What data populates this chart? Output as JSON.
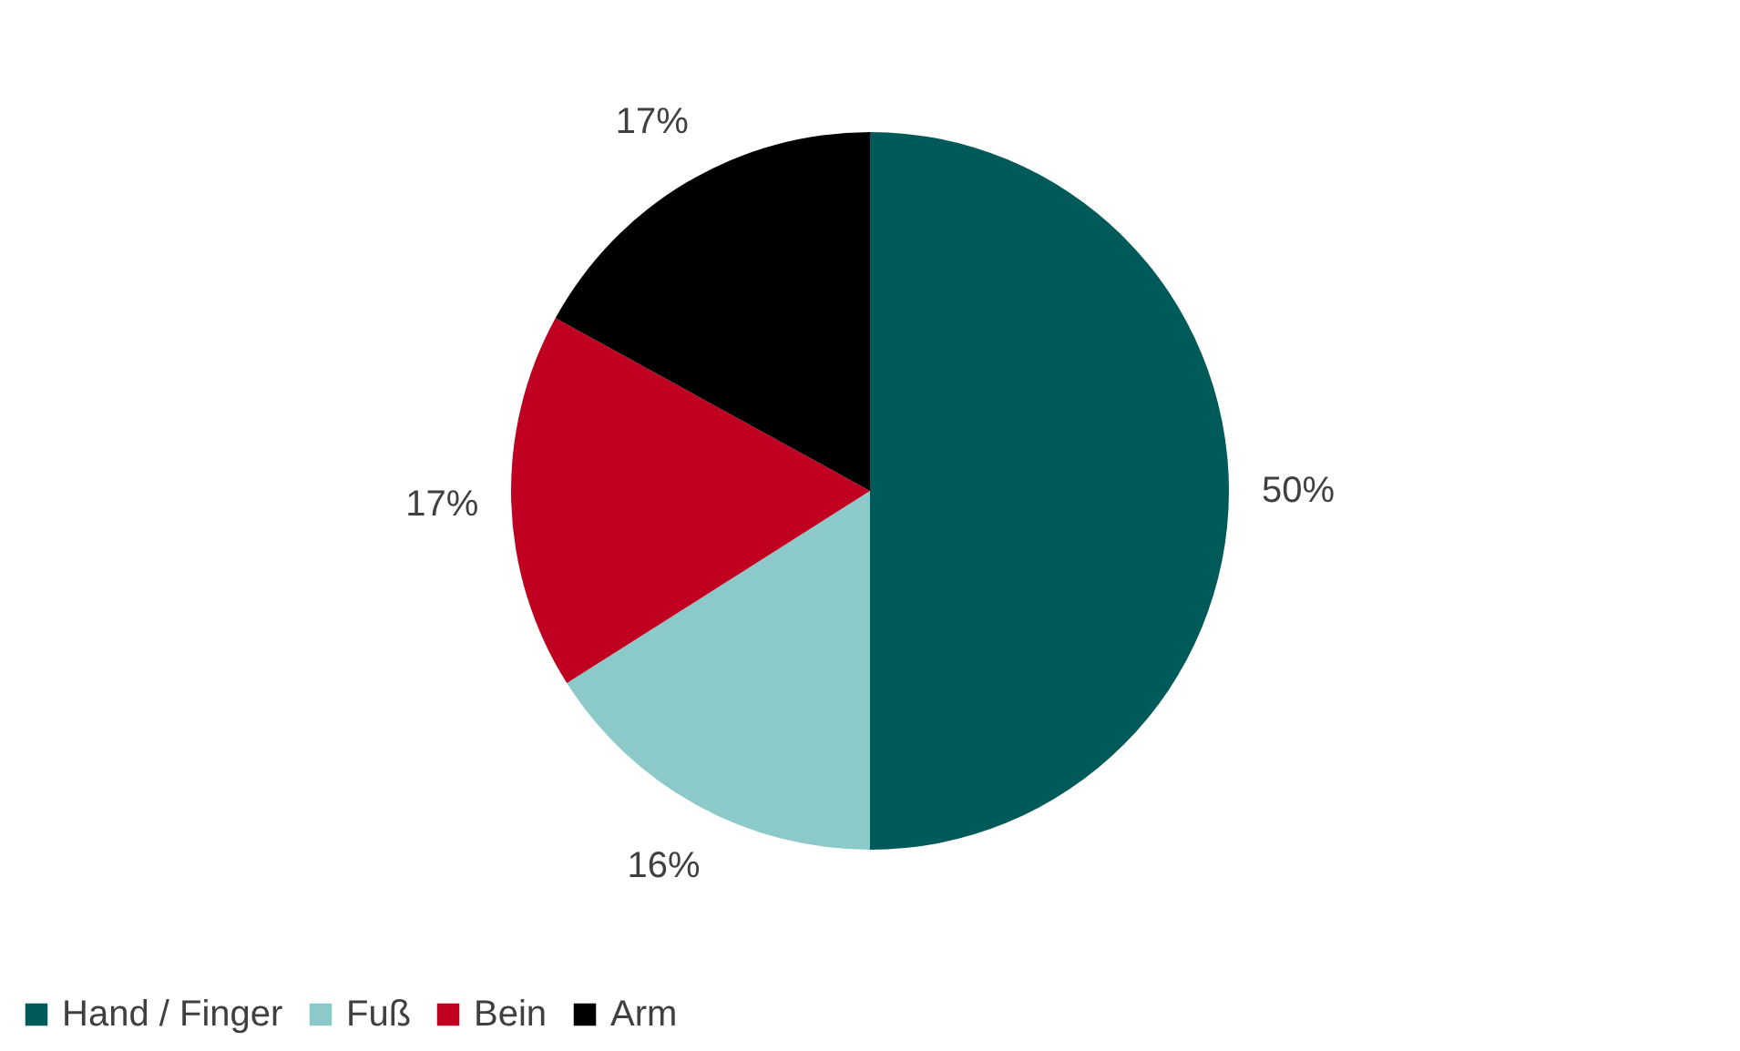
{
  "chart_data": {
    "type": "pie",
    "categories": [
      "Hand / Finger",
      "Fuß",
      "Bein",
      "Arm"
    ],
    "values": [
      50,
      16,
      17,
      17
    ],
    "colors": [
      "#005a5a",
      "#8ccaca",
      "#c00020",
      "#000000"
    ],
    "value_labels": [
      "50%",
      "16%",
      "17%",
      "17%"
    ],
    "legend": "bottom"
  }
}
